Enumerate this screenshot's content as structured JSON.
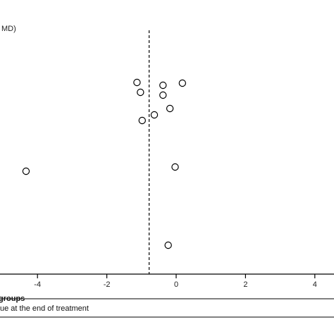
{
  "chart_data": {
    "type": "scatter",
    "title": "",
    "ylabel_fragment": "MD)",
    "xlabel": "",
    "xlim": [
      -4.8,
      4.8
    ],
    "xticks": [
      -4,
      -2,
      0,
      2,
      4
    ],
    "xtick_labels": [
      "-4",
      "-2",
      "0",
      "2",
      "4"
    ],
    "reference_line_x": -0.78,
    "points": [
      {
        "x": -1.13,
        "y": 1
      },
      {
        "x": -0.38,
        "y": 2
      },
      {
        "x": 0.18,
        "y": 3
      },
      {
        "x": -1.03,
        "y": 4
      },
      {
        "x": -0.38,
        "y": 5
      },
      {
        "x": -0.18,
        "y": 6
      },
      {
        "x": -0.63,
        "y": 7
      },
      {
        "x": -0.98,
        "y": 8
      },
      {
        "x": -0.03,
        "y": 9
      },
      {
        "x": -4.33,
        "y": 10
      },
      {
        "x": -0.23,
        "y": 11
      }
    ],
    "legend": {
      "title": "groups",
      "items": [
        "ue at the end of treatment"
      ]
    },
    "marker": "open-circle",
    "colors": {
      "marker": "#000000",
      "line": "#000000"
    }
  }
}
